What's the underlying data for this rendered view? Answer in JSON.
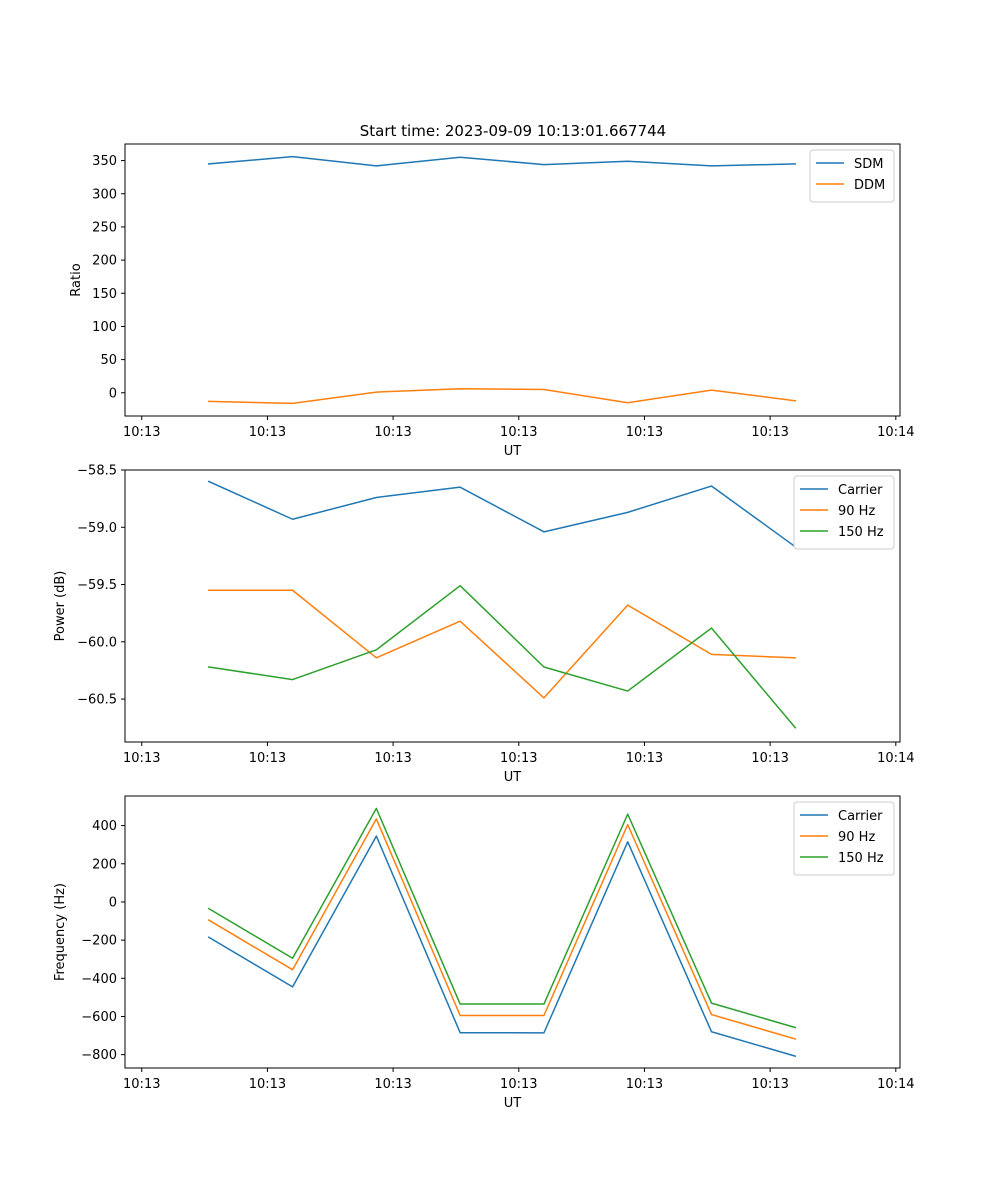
{
  "figure": {
    "title": "Start time: 2023-09-09 10:13:01.667744"
  },
  "colors": {
    "blue": "#1f77b4",
    "orange": "#ff7f0e",
    "green": "#2ca02c"
  },
  "chart_data": [
    {
      "type": "line",
      "title": "Start time: 2023-09-09 10:13:01.667744",
      "xlabel": "UT",
      "ylabel": "Ratio",
      "x": [
        1.0,
        2.0,
        3.0,
        4.0,
        5.0,
        6.0,
        7.0,
        8.0
      ],
      "xlim": [
        0,
        9.25
      ],
      "xticks": [
        0.2,
        1.7,
        3.2,
        4.7,
        6.2,
        7.7,
        9.2
      ],
      "xticklabels": [
        "10:13",
        "10:13",
        "10:13",
        "10:13",
        "10:13",
        "10:13",
        "10:14"
      ],
      "ylim": [
        -35,
        375
      ],
      "yticks": [
        0,
        50,
        100,
        150,
        200,
        250,
        300,
        350
      ],
      "yticklabels": [
        "0",
        "50",
        "100",
        "150",
        "200",
        "250",
        "300",
        "350"
      ],
      "legend_loc": "upper right",
      "series": [
        {
          "name": "SDM",
          "color": "blue",
          "values": [
            345,
            356,
            342,
            355,
            344,
            349,
            342,
            345
          ]
        },
        {
          "name": "DDM",
          "color": "orange",
          "values": [
            -13,
            -16,
            1,
            6,
            5,
            -15,
            4,
            -12
          ]
        }
      ]
    },
    {
      "type": "line",
      "title": "",
      "xlabel": "UT",
      "ylabel": "Power (dB)",
      "x": [
        1.0,
        2.0,
        3.0,
        4.0,
        5.0,
        6.0,
        7.0,
        8.0
      ],
      "xlim": [
        0,
        9.25
      ],
      "xticks": [
        0.2,
        1.7,
        3.2,
        4.7,
        6.2,
        7.7,
        9.2
      ],
      "xticklabels": [
        "10:13",
        "10:13",
        "10:13",
        "10:13",
        "10:13",
        "10:13",
        "10:14"
      ],
      "ylim": [
        -60.875,
        -58.5
      ],
      "yticks": [
        -58.5,
        -59.0,
        -59.5,
        -60.0,
        -60.5
      ],
      "yticklabels": [
        "−58.5",
        "−59.0",
        "−59.5",
        "−60.0",
        "−60.5"
      ],
      "legend_loc": "upper right",
      "series": [
        {
          "name": "Carrier",
          "color": "blue",
          "values": [
            -58.6,
            -58.93,
            -58.74,
            -58.65,
            -59.04,
            -58.87,
            -58.64,
            -59.17
          ]
        },
        {
          "name": "90 Hz",
          "color": "orange",
          "values": [
            -59.55,
            -59.55,
            -60.14,
            -59.82,
            -60.49,
            -59.68,
            -60.11,
            -60.14
          ]
        },
        {
          "name": "150 Hz",
          "color": "green",
          "values": [
            -60.22,
            -60.33,
            -60.07,
            -59.51,
            -60.22,
            -60.43,
            -59.88,
            -60.75
          ]
        }
      ]
    },
    {
      "type": "line",
      "title": "",
      "xlabel": "UT",
      "ylabel": "Frequency (Hz)",
      "x": [
        1.0,
        2.0,
        3.0,
        4.0,
        5.0,
        6.0,
        7.0,
        8.0
      ],
      "xlim": [
        0,
        9.25
      ],
      "xticks": [
        0.2,
        1.7,
        3.2,
        4.7,
        6.2,
        7.7,
        9.2
      ],
      "xticklabels": [
        "10:13",
        "10:13",
        "10:13",
        "10:13",
        "10:13",
        "10:13",
        "10:14"
      ],
      "ylim": [
        -870,
        555
      ],
      "yticks": [
        400,
        200,
        0,
        -200,
        -400,
        -600,
        -800
      ],
      "yticklabels": [
        "400",
        "200",
        "0",
        "−200",
        "−400",
        "−600",
        "−800"
      ],
      "legend_loc": "upper right",
      "series": [
        {
          "name": "Carrier",
          "color": "blue",
          "values": [
            -185,
            -445,
            345,
            -685,
            -686,
            315,
            -680,
            -808
          ]
        },
        {
          "name": "90 Hz",
          "color": "orange",
          "values": [
            -95,
            -355,
            435,
            -595,
            -595,
            405,
            -590,
            -718
          ]
        },
        {
          "name": "150 Hz",
          "color": "green",
          "values": [
            -35,
            -295,
            490,
            -535,
            -535,
            460,
            -530,
            -658
          ]
        }
      ]
    }
  ]
}
